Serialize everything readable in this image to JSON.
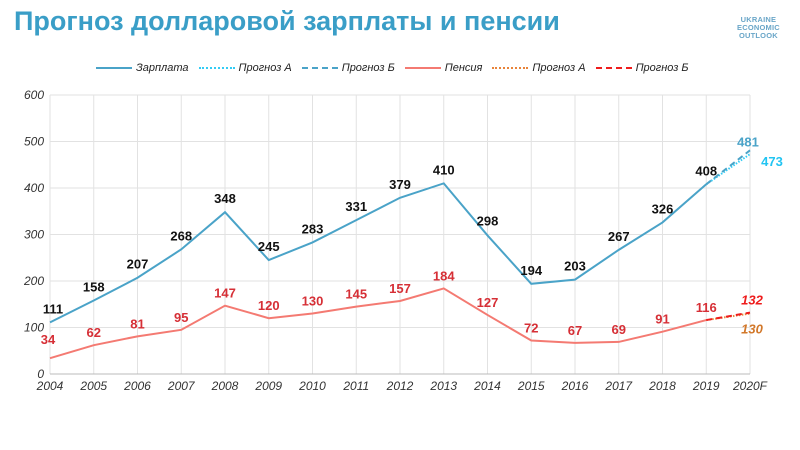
{
  "title": "Прогноз долларовой зарплаты и пенсии",
  "logo": [
    "UKRAINE",
    "ECONOMIC",
    "OUTLOOK"
  ],
  "chart_data": {
    "type": "line",
    "title": "Прогноз долларовой зарплаты и пенсии",
    "xlabel": "",
    "ylabel": "",
    "ylim": [
      0,
      600
    ],
    "yticks": [
      "0",
      "100",
      "200",
      "300",
      "400",
      "500",
      "600"
    ],
    "categories": [
      "2004",
      "2005",
      "2006",
      "2007",
      "2008",
      "2009",
      "2010",
      "2011",
      "2012",
      "2013",
      "2014",
      "2015",
      "2016",
      "2017",
      "2018",
      "2019",
      "2020F"
    ],
    "grid": true,
    "legend_position": "top",
    "series": [
      {
        "name": "Зарплата",
        "color": "#4aa3c8",
        "style": "solid",
        "values": [
          111,
          158,
          207,
          268,
          348,
          245,
          283,
          331,
          379,
          410,
          298,
          194,
          203,
          267,
          326,
          408,
          null
        ]
      },
      {
        "name": "Прогноз А",
        "color": "#33ccf5",
        "style": "dotted",
        "values": [
          null,
          null,
          null,
          null,
          null,
          null,
          null,
          null,
          null,
          null,
          null,
          null,
          null,
          null,
          null,
          408,
          473
        ]
      },
      {
        "name": "Прогноз Б",
        "color": "#4aa3c8",
        "style": "dashed",
        "values": [
          null,
          null,
          null,
          null,
          null,
          null,
          null,
          null,
          null,
          null,
          null,
          null,
          null,
          null,
          null,
          408,
          481
        ]
      },
      {
        "name": "Пенсия",
        "color": "#f47a72",
        "style": "solid",
        "values": [
          34,
          62,
          81,
          95,
          147,
          120,
          130,
          145,
          157,
          184,
          127,
          72,
          67,
          69,
          91,
          116,
          null
        ]
      },
      {
        "name": "Прогноз А",
        "color": "#e8843a",
        "style": "dotted",
        "values": [
          null,
          null,
          null,
          null,
          null,
          null,
          null,
          null,
          null,
          null,
          null,
          null,
          null,
          null,
          null,
          116,
          130
        ]
      },
      {
        "name": "Прогноз Б",
        "color": "#ee1c1c",
        "style": "dashed",
        "values": [
          null,
          null,
          null,
          null,
          null,
          null,
          null,
          null,
          null,
          null,
          null,
          null,
          null,
          null,
          null,
          116,
          132
        ]
      }
    ]
  }
}
